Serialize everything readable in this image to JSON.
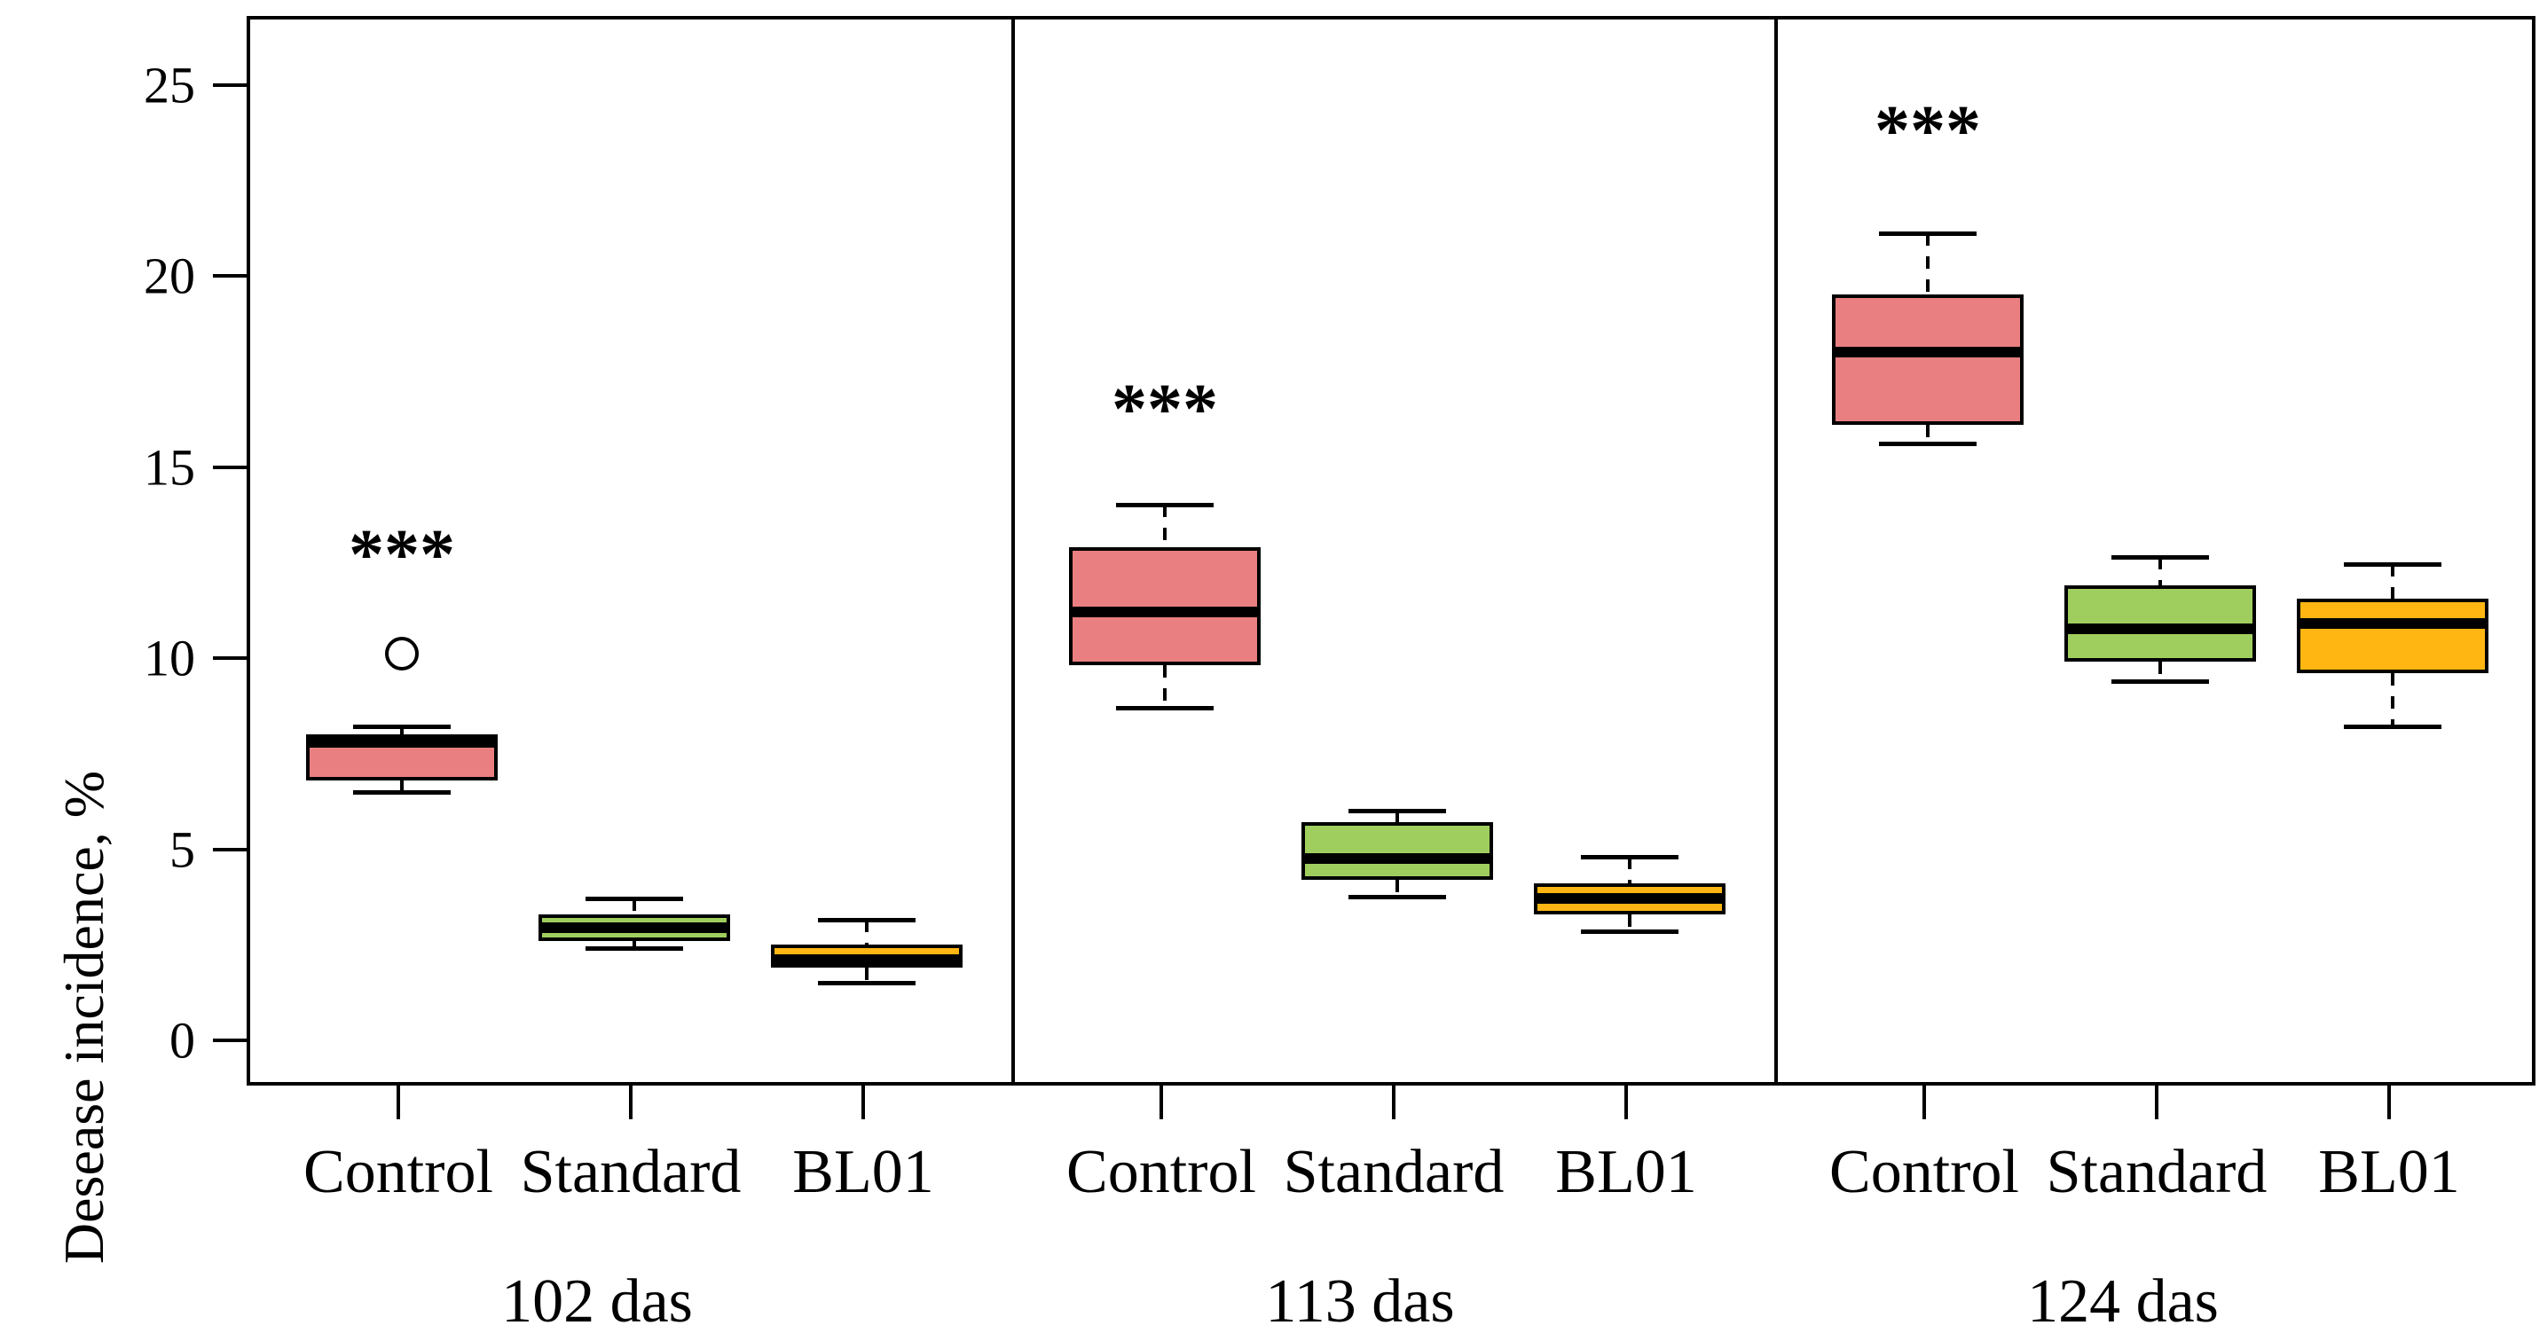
{
  "chart_data": {
    "type": "boxplot",
    "title": "",
    "ylabel": "Desease incidence, %",
    "xlabel": "",
    "ylim": [
      -1.18,
      26.8
    ],
    "yticks": [
      0,
      5,
      10,
      15,
      20,
      25
    ],
    "grid": false,
    "legend": "none",
    "groups": [
      "Control",
      "Standard",
      "BL01"
    ],
    "group_colors": [
      "#E97F80",
      "#A0CE5E",
      "#FFB612"
    ],
    "panels": [
      {
        "label": "102 das",
        "significance": "***",
        "significance_over": "Control",
        "significance_y": 12.6,
        "boxes": [
          {
            "group": "Control",
            "whisker_low": 6.6,
            "q1": 6.9,
            "median": 7.9,
            "q3": 8.1,
            "whisker_high": 8.3,
            "outliers": [
              10.2
            ]
          },
          {
            "group": "Standard",
            "whisker_low": 2.5,
            "q1": 2.7,
            "median": 3.05,
            "q3": 3.4,
            "whisker_high": 3.8,
            "outliers": []
          },
          {
            "group": "BL01",
            "whisker_low": 1.6,
            "q1": 2.0,
            "median": 2.2,
            "q3": 2.6,
            "whisker_high": 3.25,
            "outliers": []
          }
        ]
      },
      {
        "label": "113 das",
        "significance": "***",
        "significance_over": "Control",
        "significance_y": 16.4,
        "boxes": [
          {
            "group": "Control",
            "whisker_low": 8.8,
            "q1": 9.9,
            "median": 11.3,
            "q3": 13.0,
            "whisker_high": 14.1,
            "outliers": []
          },
          {
            "group": "Standard",
            "whisker_low": 3.85,
            "q1": 4.3,
            "median": 4.85,
            "q3": 5.8,
            "whisker_high": 6.1,
            "outliers": []
          },
          {
            "group": "BL01",
            "whisker_low": 2.95,
            "q1": 3.4,
            "median": 3.8,
            "q3": 4.2,
            "whisker_high": 4.9,
            "outliers": []
          }
        ]
      },
      {
        "label": "124 das",
        "significance": "***",
        "significance_over": "Control",
        "significance_y": 23.7,
        "boxes": [
          {
            "group": "Control",
            "whisker_low": 15.7,
            "q1": 16.2,
            "median": 18.1,
            "q3": 19.6,
            "whisker_high": 21.2,
            "outliers": []
          },
          {
            "group": "Standard",
            "whisker_low": 9.5,
            "q1": 10.0,
            "median": 10.85,
            "q3": 12.0,
            "whisker_high": 12.75,
            "outliers": []
          },
          {
            "group": "BL01",
            "whisker_low": 8.3,
            "q1": 9.7,
            "median": 11.0,
            "q3": 11.65,
            "whisker_high": 12.55,
            "outliers": []
          }
        ]
      }
    ]
  }
}
